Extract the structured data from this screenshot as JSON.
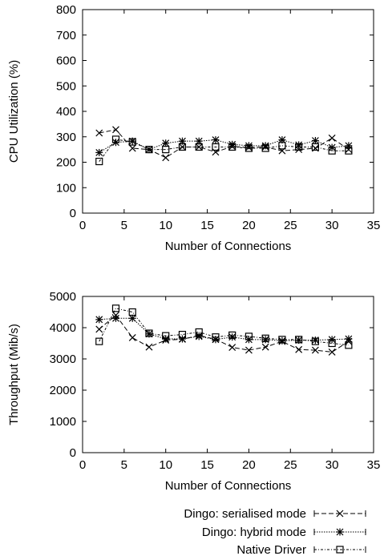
{
  "chart_data": [
    {
      "type": "line",
      "title": "",
      "xlabel": "Number of Connections",
      "ylabel": "CPU Utilization (%)",
      "xlim": [
        0,
        35
      ],
      "ylim": [
        0,
        800
      ],
      "xticks": [
        0,
        5,
        10,
        15,
        20,
        25,
        30,
        35
      ],
      "yticks": [
        0,
        100,
        200,
        300,
        400,
        500,
        600,
        700,
        800
      ],
      "x": [
        2,
        4,
        6,
        8,
        10,
        12,
        14,
        16,
        18,
        20,
        22,
        24,
        26,
        28,
        30,
        32
      ],
      "series": [
        {
          "name": "Dingo: serialised mode",
          "marker": "x",
          "dash": "6,3",
          "values": [
            315,
            328,
            255,
            250,
            218,
            260,
            260,
            240,
            262,
            258,
            260,
            245,
            250,
            255,
            295,
            250
          ]
        },
        {
          "name": "Dingo: hybrid mode",
          "marker": "star",
          "dash": "1.5,1.5",
          "values": [
            238,
            278,
            283,
            250,
            275,
            283,
            283,
            288,
            270,
            265,
            265,
            288,
            268,
            285,
            258,
            265
          ]
        },
        {
          "name": "Native Driver",
          "marker": "square",
          "dash": "3,2,1,2",
          "values": [
            203,
            290,
            280,
            250,
            250,
            260,
            260,
            260,
            260,
            255,
            255,
            265,
            260,
            260,
            245,
            245
          ]
        }
      ]
    },
    {
      "type": "line",
      "title": "",
      "xlabel": "Number of Connections",
      "ylabel": "Throughput (Mib/s)",
      "xlim": [
        0,
        35
      ],
      "ylim": [
        0,
        5000
      ],
      "xticks": [
        0,
        5,
        10,
        15,
        20,
        25,
        30,
        35
      ],
      "yticks": [
        0,
        1000,
        2000,
        3000,
        4000,
        5000
      ],
      "x": [
        2,
        4,
        6,
        8,
        10,
        12,
        14,
        16,
        18,
        20,
        22,
        24,
        26,
        28,
        30,
        32
      ],
      "series": [
        {
          "name": "Dingo: serialised mode",
          "marker": "x",
          "dash": "6,3",
          "values": [
            3950,
            4400,
            3680,
            3380,
            3600,
            3630,
            3750,
            3630,
            3370,
            3280,
            3380,
            3560,
            3300,
            3280,
            3220,
            3560
          ]
        },
        {
          "name": "Dingo: hybrid mode",
          "marker": "star",
          "dash": "1.5,1.5",
          "values": [
            4260,
            4300,
            4300,
            3800,
            3640,
            3640,
            3720,
            3620,
            3700,
            3620,
            3620,
            3580,
            3600,
            3600,
            3620,
            3640
          ]
        },
        {
          "name": "Native Driver",
          "marker": "square",
          "dash": "3,2,1,2",
          "values": [
            3560,
            4620,
            4500,
            3820,
            3740,
            3780,
            3860,
            3700,
            3760,
            3720,
            3660,
            3620,
            3620,
            3560,
            3500,
            3440
          ]
        }
      ]
    }
  ],
  "legend": {
    "placement": "bottom-right",
    "entries": [
      "Dingo: serialised mode",
      "Dingo: hybrid mode",
      "Native Driver"
    ]
  }
}
